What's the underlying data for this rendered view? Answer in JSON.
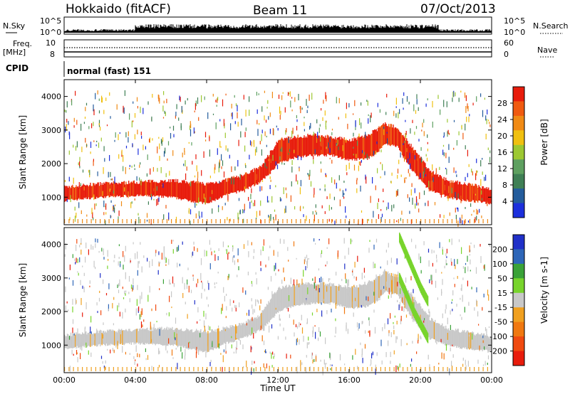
{
  "header": {
    "radar": "Hokkaido (fitACF)",
    "beam": "Beam 11",
    "date": "07/Oct/2013"
  },
  "top_panels": {
    "nsky_label": "N.Sky",
    "nsearch_label": "N.Search",
    "count_ticks": [
      "10^5",
      "10^0"
    ],
    "freq_label_line1": "Freq.",
    "freq_label_line2": "[MHz]",
    "freq_ticks": [
      "10",
      "8"
    ],
    "nave_label": "Nave",
    "nave_ticks": [
      "60",
      "0"
    ],
    "cpid_label": "CPID",
    "cpid_value": "normal (fast) 151"
  },
  "colors": {
    "power": [
      "#1c2fdc",
      "#245c9c",
      "#3f7f55",
      "#5ea060",
      "#9dc832",
      "#f0c010",
      "#f08a15",
      "#f05a10",
      "#e81c0c"
    ],
    "velocity": [
      "#2030c8",
      "#2e66b8",
      "#3aa238",
      "#78d42c",
      "#c8c8c8",
      "#f0a020",
      "#f07810",
      "#f04a10",
      "#e81c0c"
    ],
    "gray_scatter": "#c8c8c8"
  },
  "chart_data": [
    {
      "type": "heatmap",
      "panel": "power",
      "title": "",
      "xlabel": "Time UT",
      "ylabel": "Slant Range [km]",
      "x_ticks": [
        "00:00",
        "04:00",
        "08:00",
        "12:00",
        "16:00",
        "20:00",
        "00:00"
      ],
      "xlim_hours": [
        0,
        24
      ],
      "ylim": [
        180,
        4500
      ],
      "y_ticks": [
        1000,
        2000,
        3000,
        4000
      ],
      "colorbar": {
        "label": "Power [dB]",
        "ticks": [
          4,
          8,
          12,
          16,
          20,
          24,
          28
        ],
        "range": [
          0,
          32
        ]
      },
      "main_echo_band_km": {
        "hours": [
          0.0,
          2.0,
          4.0,
          6.0,
          7.0,
          8.0,
          9.0,
          10.0,
          11.0,
          11.5,
          12.0,
          13.0,
          14.0,
          15.0,
          16.0,
          17.0,
          17.5,
          18.0,
          18.7,
          19.5,
          20.5,
          21.5,
          22.5,
          23.5,
          24.0
        ],
        "lower": [
          900,
          1000,
          1050,
          1000,
          900,
          800,
          1050,
          1200,
          1450,
          1700,
          2000,
          2200,
          2250,
          2250,
          2100,
          2150,
          2300,
          2600,
          2500,
          1800,
          1200,
          1000,
          900,
          850,
          800
        ],
        "upper": [
          1300,
          1400,
          1450,
          1500,
          1450,
          1400,
          1500,
          1650,
          1900,
          2300,
          2700,
          2800,
          2850,
          2800,
          2700,
          2850,
          3000,
          3200,
          3050,
          2500,
          1800,
          1500,
          1400,
          1300,
          1250
        ]
      }
    },
    {
      "type": "heatmap",
      "panel": "velocity",
      "title": "",
      "xlabel": "Time UT",
      "ylabel": "Slant Range [km]",
      "x_ticks": [
        "00:00",
        "04:00",
        "08:00",
        "12:00",
        "16:00",
        "20:00",
        "00:00"
      ],
      "xlim_hours": [
        0,
        24
      ],
      "ylim": [
        180,
        4500
      ],
      "y_ticks": [
        1000,
        2000,
        3000,
        4000
      ],
      "colorbar": {
        "label": "Velocity [m s-1]",
        "ticks": [
          200,
          100,
          50,
          15,
          -15,
          -50,
          -100,
          -200
        ]
      },
      "green_streak_km": {
        "hours": [
          18.8,
          19.2,
          19.6,
          20.0,
          20.4
        ],
        "range_a": [
          4200,
          3700,
          3200,
          2700,
          2300
        ],
        "range_b": [
          3000,
          2500,
          2000,
          1600,
          1200
        ]
      }
    }
  ]
}
